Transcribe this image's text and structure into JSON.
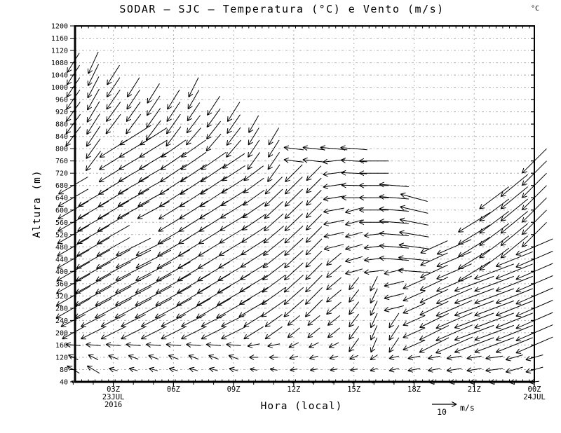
{
  "unit_label": "°C",
  "chart_data": {
    "type": "vector-field",
    "title": "SODAR – SJC – Temperatura (°C) e Vento (m/s)",
    "xlabel": "Hora (local)",
    "ylabel": "Altura (m)",
    "temperature_unit": "°C",
    "y_range": [
      40,
      1200
    ],
    "y_step": 40,
    "y_ticks": [
      40,
      80,
      120,
      160,
      200,
      240,
      280,
      320,
      360,
      400,
      440,
      480,
      520,
      560,
      600,
      640,
      680,
      720,
      760,
      800,
      840,
      880,
      920,
      960,
      1000,
      1040,
      1080,
      1120,
      1160,
      1200
    ],
    "x_ticks": [
      {
        "label": "03Z",
        "hour": 3
      },
      {
        "label": "06Z",
        "hour": 6
      },
      {
        "label": "09Z",
        "hour": 9
      },
      {
        "label": "12Z",
        "hour": 12
      },
      {
        "label": "15Z",
        "hour": 15
      },
      {
        "label": "18Z",
        "hour": 18
      },
      {
        "label": "21Z",
        "hour": 21
      },
      {
        "label": "00Z",
        "hour": 24
      }
    ],
    "date_start_line1": "23JUL",
    "date_start_line2": "2016",
    "date_end_line1": "24JUL",
    "ref_arrow": {
      "speed_ms": 10,
      "value_label": "10",
      "unit_label": "m/s"
    },
    "grid": "dotted",
    "colors": {
      "foreground": "#000000",
      "background": "#ffffff",
      "grid": "#b0b0b0"
    },
    "segment_format": "[height_from_m, height_to_m, u0_ms, v0_ms, u1_ms, v1_ms] (u east+, v north+; levels every 40 m, linear interp)",
    "columns": [
      {
        "hour": 1,
        "segments": [
          [
            40,
            40,
            -1.5,
            0.5
          ],
          [
            80,
            80,
            -5,
            3
          ],
          [
            120,
            120,
            -4,
            2
          ],
          [
            160,
            160,
            -6,
            0.5
          ],
          [
            200,
            240,
            -9,
            -5,
            -10,
            -5
          ],
          [
            280,
            680,
            -14,
            -8,
            -12,
            -7
          ],
          [
            840,
            1080,
            -6,
            -8,
            -5,
            -8
          ]
        ]
      },
      {
        "hour": 2,
        "segments": [
          [
            40,
            40,
            -1.5,
            0.5
          ],
          [
            80,
            80,
            -5,
            3
          ],
          [
            120,
            120,
            -4,
            2
          ],
          [
            160,
            160,
            -6,
            0.5
          ],
          [
            200,
            240,
            -10,
            -5
          ],
          [
            280,
            660,
            -15,
            -8,
            -12,
            -7
          ],
          [
            760,
            1100,
            -6,
            -8,
            -4,
            -9
          ]
        ]
      },
      {
        "hour": 3,
        "segments": [
          [
            40,
            40,
            -1.5,
            0.5
          ],
          [
            80,
            80,
            -3.5,
            1
          ],
          [
            120,
            120,
            -4,
            1.5
          ],
          [
            160,
            160,
            -6,
            0.5
          ],
          [
            200,
            240,
            -10,
            -5
          ],
          [
            280,
            820,
            -15,
            -8,
            -11,
            -7
          ],
          [
            880,
            1060,
            -6,
            -8,
            -5,
            -8
          ]
        ]
      },
      {
        "hour": 4,
        "segments": [
          [
            40,
            40,
            -1.5,
            0.5
          ],
          [
            80,
            80,
            -3.5,
            1
          ],
          [
            120,
            120,
            -4,
            1.5
          ],
          [
            160,
            160,
            -6,
            0.5
          ],
          [
            200,
            240,
            -10,
            -5
          ],
          [
            280,
            480,
            -15,
            -8,
            -14,
            -7
          ],
          [
            600,
            860,
            -13,
            -7,
            -11,
            -7
          ],
          [
            880,
            1000,
            -6,
            -8,
            -5,
            -8
          ]
        ]
      },
      {
        "hour": 5,
        "segments": [
          [
            40,
            40,
            -1.5,
            0.5
          ],
          [
            80,
            80,
            -3.5,
            1
          ],
          [
            120,
            120,
            -4,
            1.5
          ],
          [
            160,
            160,
            -6,
            0.5
          ],
          [
            200,
            240,
            -10,
            -5
          ],
          [
            280,
            500,
            -15,
            -8,
            -14,
            -7
          ],
          [
            600,
            840,
            -13,
            -7,
            -11,
            -7
          ],
          [
            860,
            980,
            -6,
            -8,
            -5,
            -8
          ]
        ]
      },
      {
        "hour": 6,
        "segments": [
          [
            40,
            40,
            -1.5,
            0.5
          ],
          [
            80,
            80,
            -3.5,
            1
          ],
          [
            120,
            120,
            -4,
            1.5
          ],
          [
            160,
            160,
            -6,
            0.5
          ],
          [
            200,
            240,
            -10,
            -5
          ],
          [
            280,
            800,
            -15,
            -8,
            -10,
            -7
          ],
          [
            840,
            960,
            -6,
            -8,
            -5,
            -8
          ]
        ]
      },
      {
        "hour": 7,
        "segments": [
          [
            40,
            40,
            -1.5,
            0.5
          ],
          [
            80,
            80,
            -3.5,
            1
          ],
          [
            120,
            120,
            -4,
            1.5
          ],
          [
            160,
            160,
            -6,
            0.5
          ],
          [
            200,
            240,
            -10,
            -5
          ],
          [
            280,
            800,
            -14,
            -8,
            -10,
            -7
          ],
          [
            840,
            1000,
            -6,
            -7,
            -4,
            -8
          ]
        ]
      },
      {
        "hour": 8,
        "segments": [
          [
            40,
            40,
            -1.5,
            0.5
          ],
          [
            80,
            80,
            -3.5,
            1
          ],
          [
            120,
            120,
            -4,
            1.5
          ],
          [
            160,
            160,
            -6,
            0.5
          ],
          [
            200,
            240,
            -10,
            -5
          ],
          [
            280,
            780,
            -14,
            -8,
            -10,
            -7
          ],
          [
            820,
            960,
            -6,
            -7,
            -5,
            -8
          ]
        ]
      },
      {
        "hour": 9,
        "segments": [
          [
            40,
            40,
            -1.5,
            0.5
          ],
          [
            80,
            80,
            -3.5,
            1
          ],
          [
            120,
            120,
            -4,
            1.5
          ],
          [
            160,
            160,
            -6,
            0.5
          ],
          [
            200,
            240,
            -10,
            -5
          ],
          [
            280,
            760,
            -14,
            -8,
            -9,
            -6
          ],
          [
            800,
            920,
            -6,
            -7,
            -5,
            -8
          ]
        ]
      },
      {
        "hour": 10,
        "segments": [
          [
            40,
            40,
            -1.5,
            0
          ],
          [
            80,
            80,
            -3,
            0.5
          ],
          [
            120,
            120,
            -3.5,
            0
          ],
          [
            160,
            160,
            -5,
            -1
          ],
          [
            200,
            240,
            -8,
            -5
          ],
          [
            280,
            720,
            -12,
            -7,
            -8,
            -6
          ],
          [
            760,
            880,
            -5,
            -7,
            -4,
            -7
          ]
        ]
      },
      {
        "hour": 11,
        "segments": [
          [
            40,
            40,
            -1.5,
            0
          ],
          [
            80,
            80,
            -3,
            0.5
          ],
          [
            120,
            120,
            -3.5,
            0
          ],
          [
            160,
            160,
            -5,
            -1
          ],
          [
            200,
            240,
            -7,
            -5
          ],
          [
            280,
            680,
            -10,
            -7,
            -7,
            -7
          ],
          [
            720,
            860,
            -5,
            -7,
            -4,
            -7
          ]
        ]
      },
      {
        "hour": 12,
        "segments": [
          [
            40,
            40,
            -1.5,
            -1
          ],
          [
            80,
            80,
            -3,
            -0.5
          ],
          [
            120,
            120,
            -3.5,
            -1
          ],
          [
            160,
            160,
            -4,
            -2
          ],
          [
            200,
            240,
            -5,
            -4
          ],
          [
            280,
            720,
            -8,
            -7,
            -7,
            -7
          ],
          [
            760,
            800,
            -8,
            1
          ]
        ]
      },
      {
        "hour": 13,
        "segments": [
          [
            40,
            40,
            -1.5,
            -1
          ],
          [
            80,
            80,
            -3,
            -0.5
          ],
          [
            120,
            120,
            -3.5,
            -1
          ],
          [
            160,
            160,
            -4,
            -2
          ],
          [
            200,
            240,
            -5,
            -4
          ],
          [
            280,
            720,
            -7,
            -7,
            -6,
            -6
          ],
          [
            760,
            800,
            -9,
            1
          ]
        ]
      },
      {
        "hour": 14,
        "segments": [
          [
            40,
            40,
            -1.5,
            -1
          ],
          [
            80,
            80,
            -3,
            -0.5
          ],
          [
            120,
            120,
            -3.5,
            -1
          ],
          [
            160,
            160,
            -4,
            -2
          ],
          [
            200,
            240,
            -5,
            -4
          ],
          [
            280,
            460,
            -6,
            -5
          ],
          [
            480,
            760,
            -8,
            -2,
            -9,
            -1
          ],
          [
            800,
            820,
            -11,
            1
          ]
        ]
      },
      {
        "hour": 15,
        "segments": [
          [
            40,
            40,
            -1.5,
            -1
          ],
          [
            80,
            80,
            -3,
            -0.5
          ],
          [
            120,
            120,
            -3.5,
            -1.5
          ],
          [
            160,
            380,
            -4,
            -5.5,
            -4,
            -5
          ],
          [
            400,
            620,
            -7,
            -2
          ],
          [
            640,
            820,
            -10,
            0,
            -11,
            1
          ]
        ]
      },
      {
        "hour": 16,
        "segments": [
          [
            40,
            40,
            -1.5,
            -1
          ],
          [
            80,
            80,
            -3,
            -1
          ],
          [
            120,
            120,
            -3,
            -2
          ],
          [
            160,
            380,
            -2.5,
            -6,
            -3,
            -6
          ],
          [
            400,
            540,
            -8,
            -1
          ],
          [
            560,
            780,
            -12,
            0
          ]
        ]
      },
      {
        "hour": 17,
        "segments": [
          [
            40,
            40,
            -2,
            -0.5
          ],
          [
            80,
            120,
            -4,
            -1
          ],
          [
            160,
            260,
            -4,
            -6
          ],
          [
            280,
            420,
            -8,
            -2
          ],
          [
            440,
            680,
            -12,
            1
          ]
        ]
      },
      {
        "hour": 18,
        "segments": [
          [
            40,
            40,
            -2,
            -0.5
          ],
          [
            80,
            120,
            -5,
            -1
          ],
          [
            160,
            380,
            -9,
            -4
          ],
          [
            400,
            640,
            -13,
            1,
            -11,
            3
          ]
        ]
      },
      {
        "hour": 19,
        "segments": [
          [
            40,
            40,
            -4,
            -0.5
          ],
          [
            80,
            120,
            -5,
            -1
          ],
          [
            160,
            480,
            -12,
            -6,
            -11,
            -5
          ]
        ]
      },
      {
        "hour": 20,
        "segments": [
          [
            40,
            40,
            -4,
            -0.5
          ],
          [
            80,
            120,
            -6,
            -1
          ],
          [
            160,
            480,
            -15,
            -6.5,
            -14,
            -6
          ]
        ]
      },
      {
        "hour": 21,
        "segments": [
          [
            40,
            40,
            -4,
            -0.5
          ],
          [
            80,
            120,
            -6,
            -1
          ],
          [
            160,
            380,
            -16,
            -6
          ],
          [
            400,
            560,
            -13,
            -8
          ]
        ]
      },
      {
        "hour": 22,
        "segments": [
          [
            40,
            40,
            -4,
            -0.5
          ],
          [
            80,
            120,
            -7,
            -1
          ],
          [
            160,
            420,
            -16,
            -6
          ],
          [
            440,
            640,
            -12,
            -9
          ]
        ]
      },
      {
        "hour": 23,
        "segments": [
          [
            40,
            40,
            -4,
            -0.5
          ],
          [
            80,
            120,
            -7,
            -2
          ],
          [
            160,
            460,
            -15,
            -6
          ],
          [
            480,
            680,
            -11,
            -9
          ]
        ]
      },
      {
        "hour": 24,
        "segments": [
          [
            40,
            40,
            -4,
            -0.5
          ],
          [
            80,
            120,
            -7,
            -2
          ],
          [
            160,
            500,
            -15,
            -6.5
          ],
          [
            520,
            760,
            -10,
            -10
          ]
        ]
      }
    ]
  }
}
